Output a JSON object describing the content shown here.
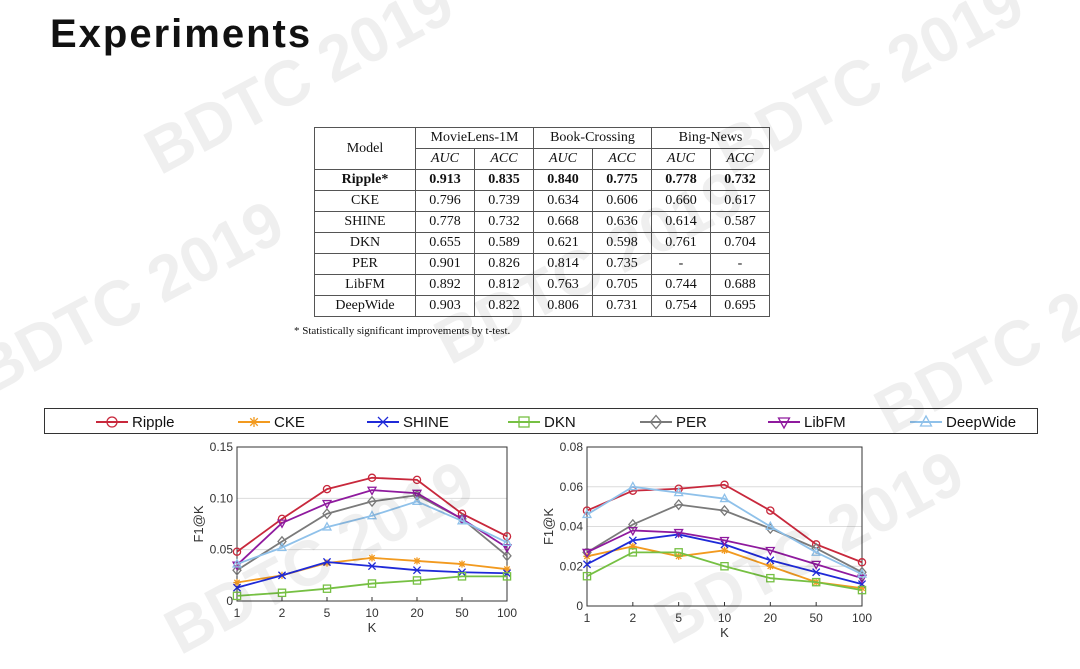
{
  "slide": {
    "title": "Experiments",
    "watermark": "BDTC 2019"
  },
  "table": {
    "model_header": "Model",
    "groups": [
      "MovieLens-1M",
      "Book-Crossing",
      "Bing-News"
    ],
    "metrics": [
      "AUC",
      "ACC",
      "AUC",
      "ACC",
      "AUC",
      "ACC"
    ],
    "rows": [
      {
        "model": "Ripple*",
        "values": [
          "0.913",
          "0.835",
          "0.840",
          "0.775",
          "0.778",
          "0.732"
        ],
        "bold": true
      },
      {
        "model": "CKE",
        "values": [
          "0.796",
          "0.739",
          "0.634",
          "0.606",
          "0.660",
          "0.617"
        ],
        "bold": false
      },
      {
        "model": "SHINE",
        "values": [
          "0.778",
          "0.732",
          "0.668",
          "0.636",
          "0.614",
          "0.587"
        ],
        "bold": false
      },
      {
        "model": "DKN",
        "values": [
          "0.655",
          "0.589",
          "0.621",
          "0.598",
          "0.761",
          "0.704"
        ],
        "bold": false
      },
      {
        "model": "PER",
        "values": [
          "0.901",
          "0.826",
          "0.814",
          "0.735",
          "-",
          "-"
        ],
        "bold": false
      },
      {
        "model": "LibFM",
        "values": [
          "0.892",
          "0.812",
          "0.763",
          "0.705",
          "0.744",
          "0.688"
        ],
        "bold": false
      },
      {
        "model": "DeepWide",
        "values": [
          "0.903",
          "0.822",
          "0.806",
          "0.731",
          "0.754",
          "0.695"
        ],
        "bold": false
      }
    ],
    "footnote": "* Statistically significant improvements by t-test."
  },
  "legend": {
    "items": [
      {
        "name": "Ripple",
        "color": "#c8283c",
        "marker": "circle"
      },
      {
        "name": "CKE",
        "color": "#f29a1f",
        "marker": "star"
      },
      {
        "name": "SHINE",
        "color": "#1f2ad8",
        "marker": "x"
      },
      {
        "name": "DKN",
        "color": "#76c043",
        "marker": "square"
      },
      {
        "name": "PER",
        "color": "#7a7a7a",
        "marker": "diamond"
      },
      {
        "name": "LibFM",
        "color": "#8f1a9e",
        "marker": "triangle-down"
      },
      {
        "name": "DeepWide",
        "color": "#8fc1ea",
        "marker": "triangle-up"
      }
    ]
  },
  "chart_data": [
    {
      "type": "line",
      "title": "",
      "xlabel": "K",
      "ylabel": "F1@K",
      "categories": [
        "1",
        "2",
        "5",
        "10",
        "20",
        "50",
        "100"
      ],
      "ylim": [
        0,
        0.15
      ],
      "yticks": [
        "0",
        "0.05",
        "0.10",
        "0.15"
      ],
      "ytick_values": [
        0,
        0.05,
        0.1,
        0.15
      ],
      "series": [
        {
          "name": "Ripple",
          "values": [
            0.048,
            0.08,
            0.109,
            0.12,
            0.118,
            0.085,
            0.063
          ]
        },
        {
          "name": "CKE",
          "values": [
            0.018,
            0.025,
            0.037,
            0.042,
            0.039,
            0.036,
            0.031
          ]
        },
        {
          "name": "SHINE",
          "values": [
            0.013,
            0.025,
            0.038,
            0.034,
            0.03,
            0.028,
            0.027
          ]
        },
        {
          "name": "DKN",
          "values": [
            0.005,
            0.008,
            0.012,
            0.017,
            0.02,
            0.024,
            0.024
          ]
        },
        {
          "name": "PER",
          "values": [
            0.03,
            0.058,
            0.085,
            0.097,
            0.103,
            0.08,
            0.044
          ]
        },
        {
          "name": "LibFM",
          "values": [
            0.035,
            0.076,
            0.095,
            0.108,
            0.105,
            0.08,
            0.052
          ]
        },
        {
          "name": "DeepWide",
          "values": [
            0.036,
            0.052,
            0.072,
            0.083,
            0.097,
            0.078,
            0.057
          ]
        }
      ]
    },
    {
      "type": "line",
      "title": "",
      "xlabel": "K",
      "ylabel": "F1@K",
      "categories": [
        "1",
        "2",
        "5",
        "10",
        "20",
        "50",
        "100"
      ],
      "ylim": [
        0,
        0.08
      ],
      "yticks": [
        "0",
        "0.02",
        "0.04",
        "0.06",
        "0.08"
      ],
      "ytick_values": [
        0,
        0.02,
        0.04,
        0.06,
        0.08
      ],
      "series": [
        {
          "name": "Ripple",
          "values": [
            0.048,
            0.058,
            0.059,
            0.061,
            0.048,
            0.031,
            0.022
          ]
        },
        {
          "name": "CKE",
          "values": [
            0.025,
            0.03,
            0.025,
            0.028,
            0.02,
            0.012,
            0.009
          ]
        },
        {
          "name": "SHINE",
          "values": [
            0.021,
            0.033,
            0.036,
            0.031,
            0.023,
            0.017,
            0.011
          ]
        },
        {
          "name": "DKN",
          "values": [
            0.015,
            0.027,
            0.027,
            0.02,
            0.014,
            0.012,
            0.008
          ]
        },
        {
          "name": "PER",
          "values": [
            0.027,
            0.041,
            0.051,
            0.048,
            0.039,
            0.029,
            0.017
          ]
        },
        {
          "name": "LibFM",
          "values": [
            0.027,
            0.038,
            0.037,
            0.033,
            0.028,
            0.021,
            0.014
          ]
        },
        {
          "name": "DeepWide",
          "values": [
            0.046,
            0.06,
            0.057,
            0.054,
            0.04,
            0.027,
            0.016
          ]
        }
      ]
    }
  ]
}
